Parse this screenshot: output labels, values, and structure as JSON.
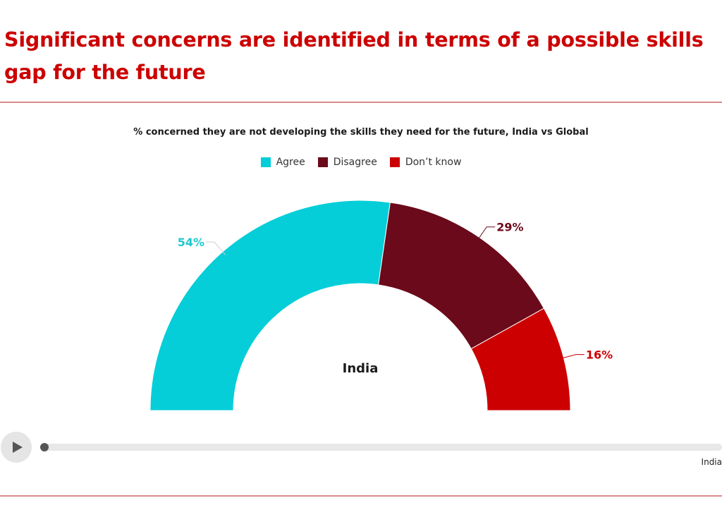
{
  "title": "Significant concerns are identified in terms of a possible skills gap for the future",
  "chart_data": {
    "type": "pie",
    "subtype": "semi-donut",
    "subtitle": "% concerned they are not developing the skills they need for the future, India vs Global",
    "center_label": "India",
    "categories": [
      "Agree",
      "Disagree",
      "Don’t know"
    ],
    "values": [
      54,
      29,
      16
    ],
    "value_labels": [
      "54%",
      "29%",
      "16%"
    ],
    "colors": [
      "#05ced8",
      "#6b0a1a",
      "#cc0000"
    ],
    "legend": [
      "Agree",
      "Disagree",
      "Don’t know"
    ],
    "legend_position": "top-center"
  },
  "player": {
    "play_icon": "play-icon",
    "current_step_label": "India"
  }
}
